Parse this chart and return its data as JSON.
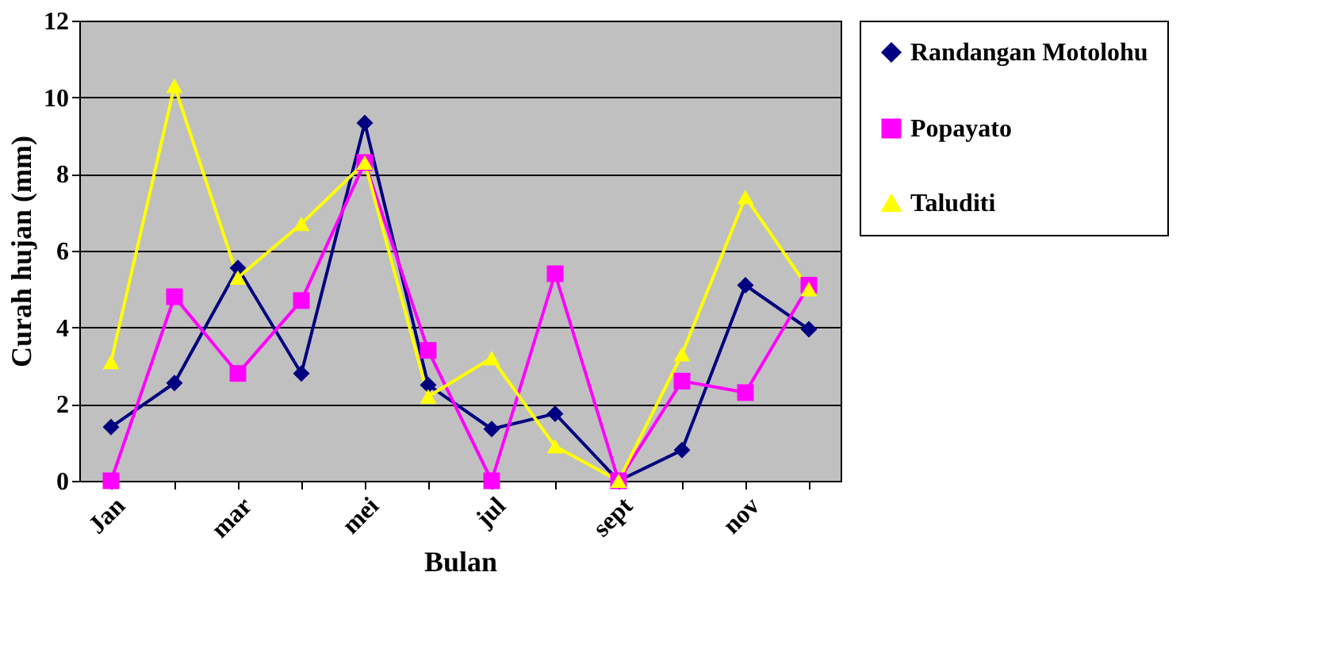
{
  "chart_data": {
    "type": "line",
    "xlabel": "Bulan",
    "ylabel": "Curah hujan (mm)",
    "categories": [
      "Jan",
      null,
      "mar",
      null,
      "mei",
      null,
      "jul",
      null,
      "sept",
      null,
      "nov",
      null
    ],
    "series": [
      {
        "name": "Randangan Motolohu",
        "color": "#000080",
        "marker": "diamond",
        "values": [
          1.4,
          2.55,
          5.55,
          2.8,
          9.33,
          2.5,
          1.35,
          1.75,
          0,
          0.8,
          5.1,
          3.95
        ]
      },
      {
        "name": "Popayato",
        "color": "#ff00ff",
        "marker": "square",
        "values": [
          0,
          4.8,
          2.8,
          4.7,
          8.3,
          3.4,
          0,
          5.4,
          0,
          2.6,
          2.3,
          5.1
        ]
      },
      {
        "name": "Taluditi",
        "color": "#ffff00",
        "marker": "triangle",
        "values": [
          3.1,
          10.3,
          5.3,
          6.7,
          8.3,
          2.2,
          3.2,
          0.9,
          0,
          3.3,
          7.4,
          5.0
        ]
      }
    ],
    "ylim": [
      0,
      12
    ],
    "yticks": [
      0,
      2,
      4,
      6,
      8,
      10,
      12
    ],
    "grid": "y",
    "legend": "right",
    "line_style": "solid"
  }
}
